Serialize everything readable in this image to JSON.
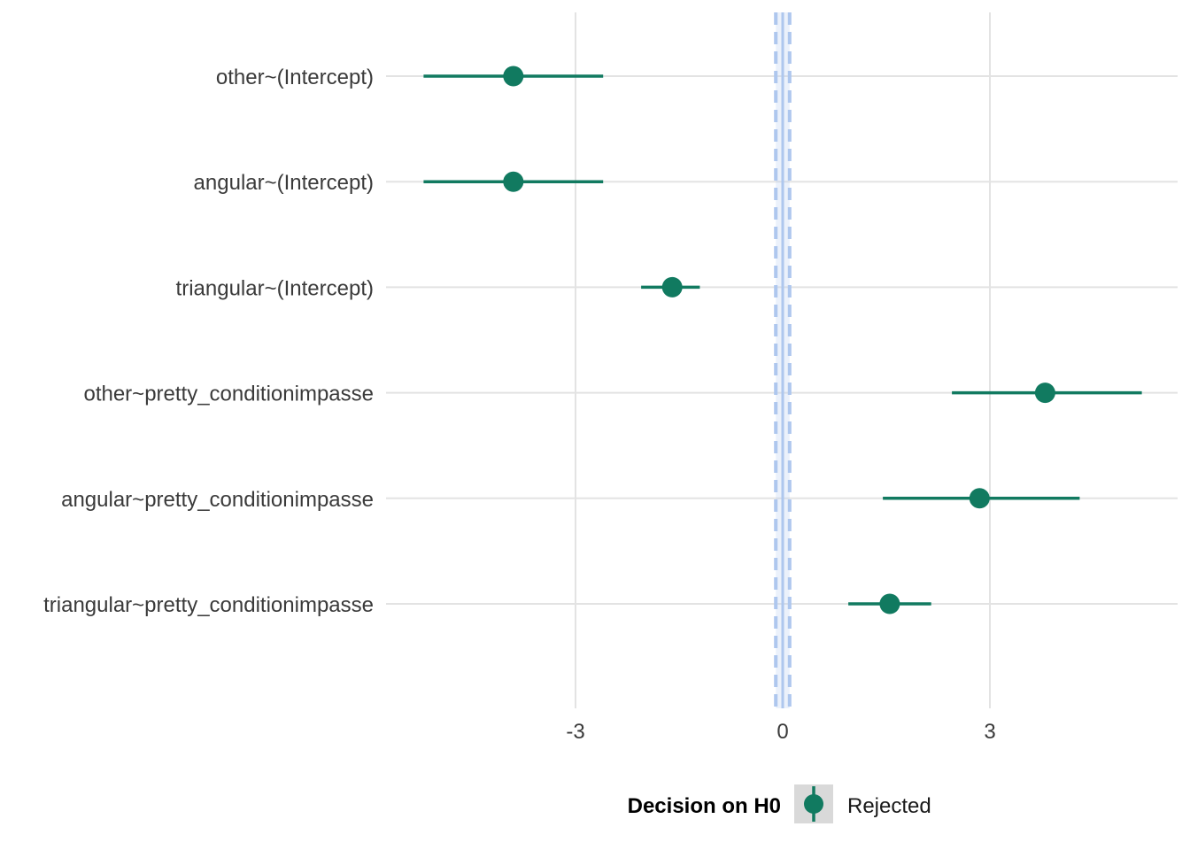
{
  "chart_data": {
    "type": "scatter",
    "subtype": "coefficient-interval-plot",
    "orientation": "horizontal",
    "xaxis": {
      "ticks": [
        -3,
        0,
        3
      ],
      "tick_labels": [
        "-3",
        "0",
        "3"
      ],
      "xlim": [
        -5.9,
        5.8
      ],
      "grid": true
    },
    "yaxis": {
      "grid": true
    },
    "reference": {
      "null_value": 0,
      "rope": [
        -0.1,
        0.1
      ],
      "color": "#aec7ee"
    },
    "terms": [
      {
        "label": "other~(Intercept)",
        "estimate": -3.9,
        "low": -5.2,
        "high": -2.6,
        "decision": "Rejected"
      },
      {
        "label": "angular~(Intercept)",
        "estimate": -3.9,
        "low": -5.2,
        "high": -2.6,
        "decision": "Rejected"
      },
      {
        "label": "triangular~(Intercept)",
        "estimate": -1.6,
        "low": -2.05,
        "high": -1.2,
        "decision": "Rejected"
      },
      {
        "label": "other~pretty_conditionimpasse",
        "estimate": 3.8,
        "low": 2.45,
        "high": 5.2,
        "decision": "Rejected"
      },
      {
        "label": "angular~pretty_conditionimpasse",
        "estimate": 2.85,
        "low": 1.45,
        "high": 4.3,
        "decision": "Rejected"
      },
      {
        "label": "triangular~pretty_conditionimpasse",
        "estimate": 1.55,
        "low": 0.95,
        "high": 2.15,
        "decision": "Rejected"
      }
    ],
    "legend": {
      "title": "Decision on H0",
      "position": "bottom",
      "items": [
        {
          "label": "Rejected",
          "color": "#117a60"
        }
      ]
    },
    "colors": {
      "point": "#117a60",
      "grid": "#e3e3e3"
    }
  }
}
